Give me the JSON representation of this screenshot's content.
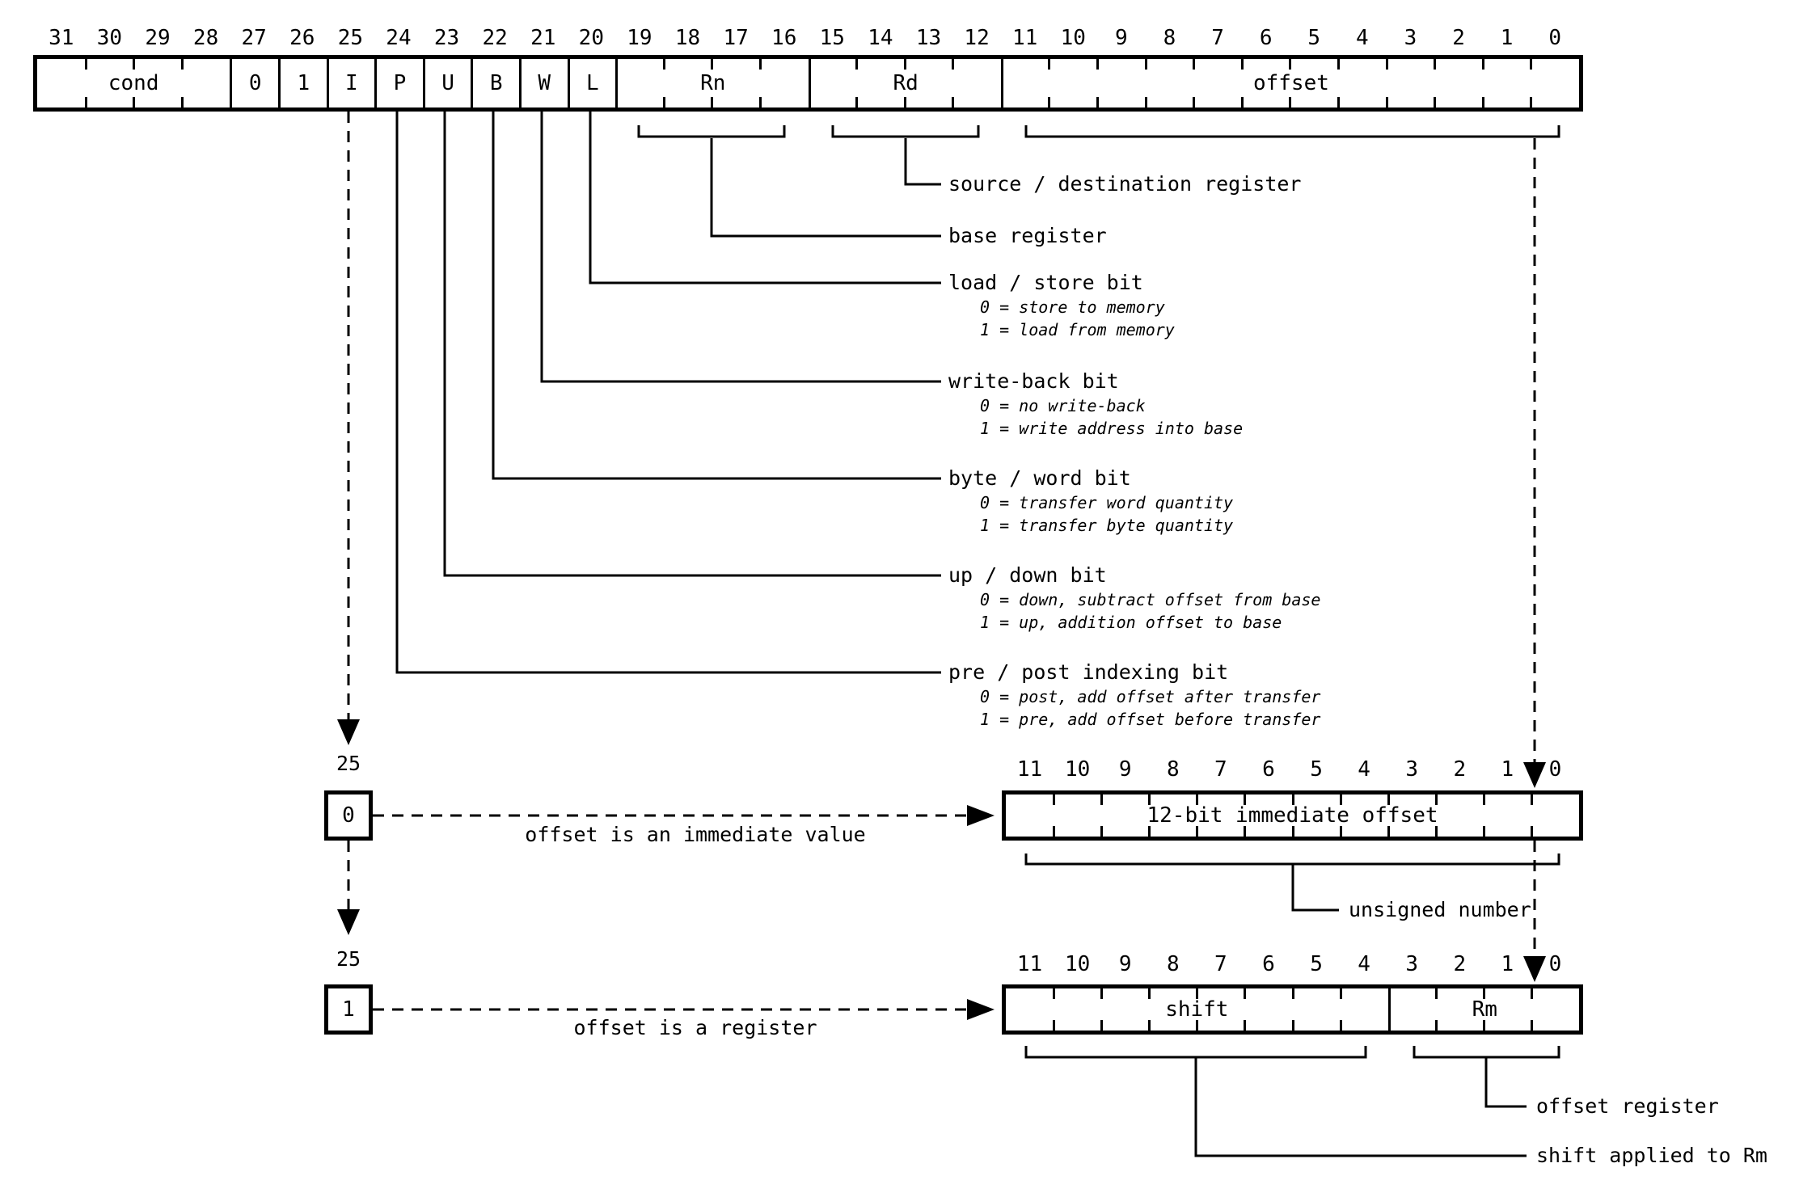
{
  "diagram": {
    "top_register": {
      "bit_numbers": [
        "31",
        "30",
        "29",
        "28",
        "27",
        "26",
        "25",
        "24",
        "23",
        "22",
        "21",
        "20",
        "19",
        "18",
        "17",
        "16",
        "15",
        "14",
        "13",
        "12",
        "11",
        "10",
        "9",
        "8",
        "7",
        "6",
        "5",
        "4",
        "3",
        "2",
        "1",
        "0"
      ],
      "fields": [
        {
          "label": "cond",
          "bits": 4
        },
        {
          "label": "0",
          "bits": 1
        },
        {
          "label": "1",
          "bits": 1
        },
        {
          "label": "I",
          "bits": 1
        },
        {
          "label": "P",
          "bits": 1
        },
        {
          "label": "U",
          "bits": 1
        },
        {
          "label": "B",
          "bits": 1
        },
        {
          "label": "W",
          "bits": 1
        },
        {
          "label": "L",
          "bits": 1
        },
        {
          "label": "Rn",
          "bits": 4
        },
        {
          "label": "Rd",
          "bits": 4
        },
        {
          "label": "offset",
          "bits": 12
        }
      ]
    },
    "field_annotations": [
      {
        "title": "source / destination register",
        "subs": []
      },
      {
        "title": "base register",
        "subs": []
      },
      {
        "title": "load / store bit",
        "subs": [
          "0 = store to memory",
          "1 = load from memory"
        ]
      },
      {
        "title": "write-back bit",
        "subs": [
          "0 = no write-back",
          "1 = write address into base"
        ]
      },
      {
        "title": "byte / word bit",
        "subs": [
          "0 = transfer word quantity",
          "1 = transfer byte quantity"
        ]
      },
      {
        "title": "up / down bit",
        "subs": [
          "0 = down, subtract offset from base",
          "1 = up, addition offset to base"
        ]
      },
      {
        "title": "pre / post indexing bit",
        "subs": [
          "0 = post, add offset after transfer",
          "1 = pre, add offset before transfer"
        ]
      }
    ],
    "immediate_path": {
      "bit_number": "25",
      "bit_value": "0",
      "arrow_label": "offset is an immediate value",
      "box": {
        "bit_numbers": [
          "11",
          "10",
          "9",
          "8",
          "7",
          "6",
          "5",
          "4",
          "3",
          "2",
          "1",
          "0"
        ],
        "fields": [
          {
            "label": "12-bit immediate offset",
            "bits": 12
          }
        ]
      },
      "brace_label": "unsigned number"
    },
    "register_path": {
      "bit_number": "25",
      "bit_value": "1",
      "arrow_label": "offset is a register",
      "box": {
        "bit_numbers": [
          "11",
          "10",
          "9",
          "8",
          "7",
          "6",
          "5",
          "4",
          "3",
          "2",
          "1",
          "0"
        ],
        "fields": [
          {
            "label": "shift",
            "bits": 8
          },
          {
            "label": "Rm",
            "bits": 4
          }
        ]
      },
      "brace_labels": [
        "offset register",
        "shift applied to Rm"
      ]
    },
    "line_color": "#000000"
  }
}
